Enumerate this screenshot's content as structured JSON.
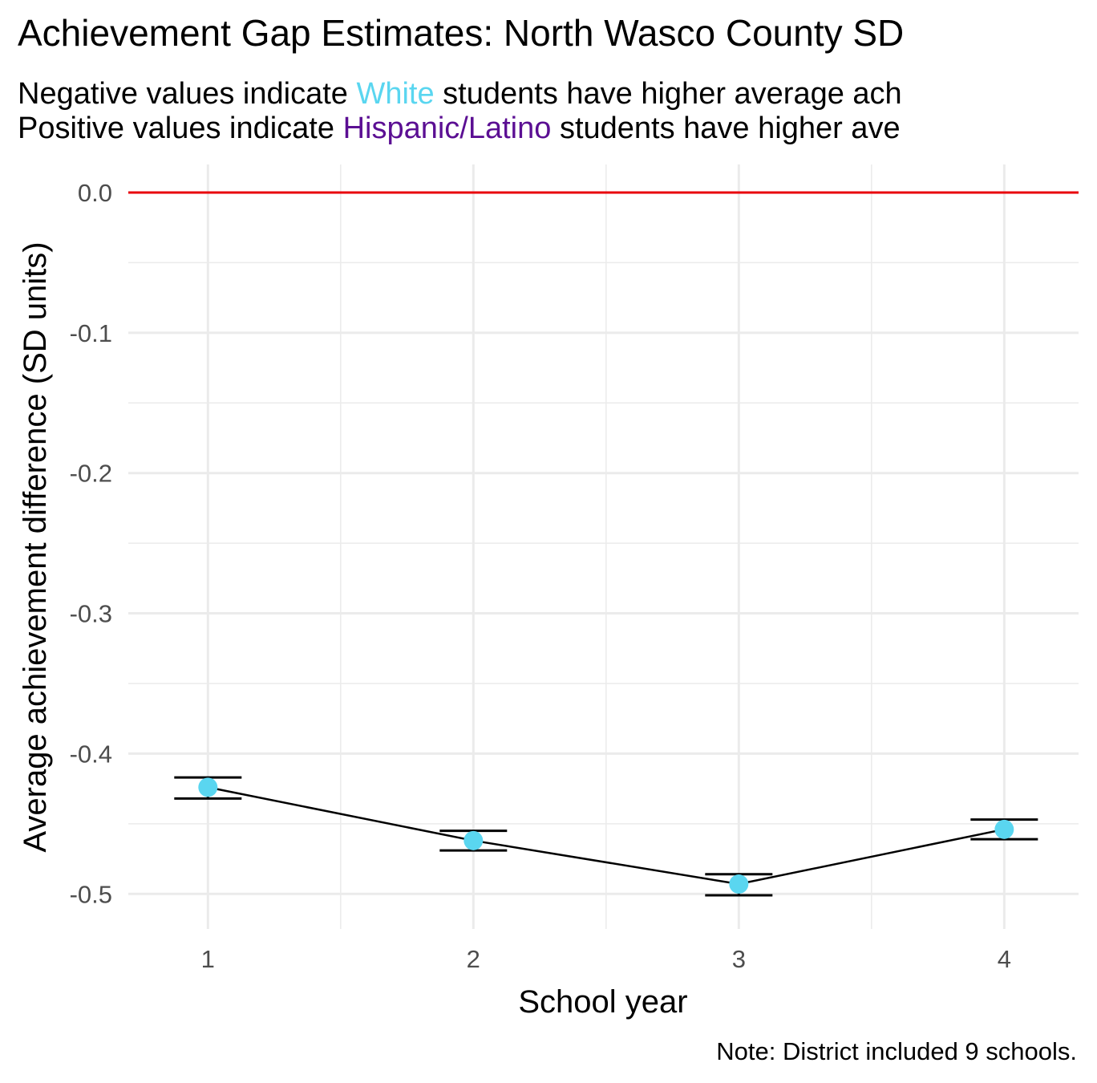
{
  "colors": {
    "white_group": "#5ad6f0",
    "hispanic_group": "#5b0f93",
    "reference_line": "#e8000b",
    "grid": "#ebebeb",
    "line": "#000000"
  },
  "header": {
    "title": "Achievement Gap Estimates: North Wasco County SD",
    "subtitle_line1": {
      "prefix": "Negative values indicate ",
      "group": "White",
      "suffix": " students have higher average ach"
    },
    "subtitle_line2": {
      "prefix": "Positive values indicate ",
      "group": "Hispanic/Latino",
      "suffix": " students have higher ave"
    }
  },
  "chart_data": {
    "type": "line",
    "xlabel": "School year",
    "ylabel": "Average achievement difference (SD units)",
    "caption": "Note: District included 9 schools.",
    "x": [
      1,
      2,
      3,
      4
    ],
    "x_ticks": [
      1,
      2,
      3,
      4
    ],
    "x_tick_labels": [
      "1",
      "2",
      "3",
      "4"
    ],
    "xlim": [
      0.7,
      4.28
    ],
    "ylim": [
      -0.525,
      0.02
    ],
    "y_ticks": [
      0.0,
      -0.1,
      -0.2,
      -0.3,
      -0.4,
      -0.5
    ],
    "y_tick_labels": [
      "0.0",
      "-0.1",
      "-0.2",
      "-0.3",
      "-0.4",
      "-0.5"
    ],
    "reference_line": 0.0,
    "grid": true,
    "legend": "none",
    "series": [
      {
        "values": [
          -0.424,
          -0.462,
          -0.493,
          -0.454
        ],
        "error_low": [
          -0.432,
          -0.469,
          -0.501,
          -0.461
        ],
        "error_high": [
          -0.417,
          -0.455,
          -0.486,
          -0.447
        ]
      }
    ]
  }
}
